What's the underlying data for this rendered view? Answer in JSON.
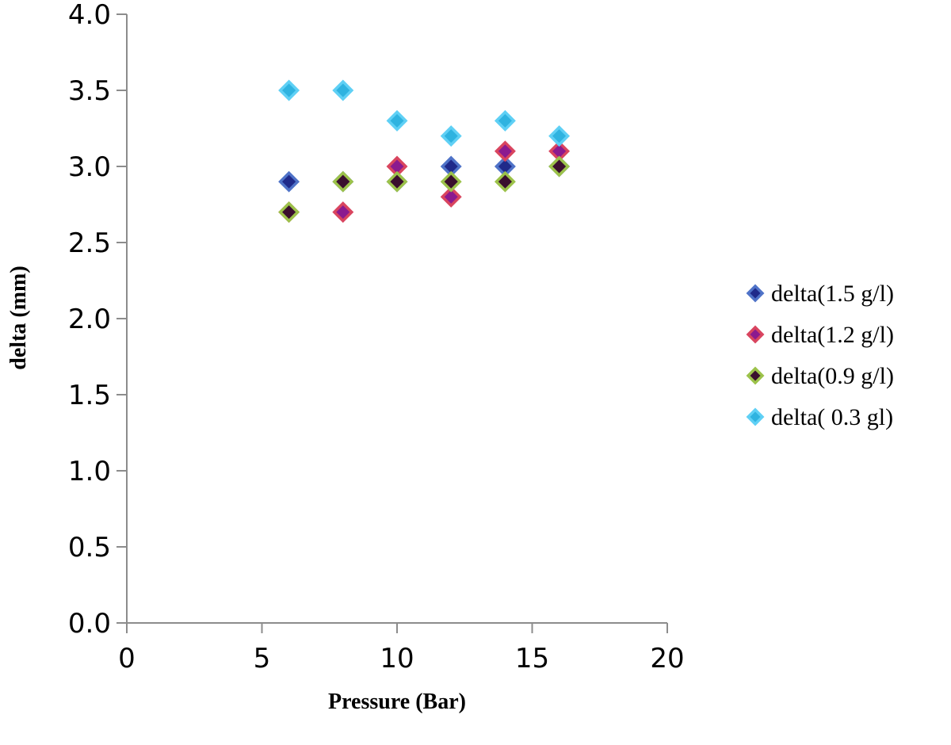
{
  "chart_data": {
    "type": "scatter",
    "title": "",
    "xlabel": "Pressure (Bar)",
    "ylabel": "delta (mm)",
    "xlim": [
      0,
      20
    ],
    "ylim": [
      0,
      4
    ],
    "x_ticks": [
      0,
      5,
      10,
      15,
      20
    ],
    "y_ticks": [
      0,
      0.5,
      1,
      1.5,
      2,
      2.5,
      3,
      3.5,
      4
    ],
    "x_tick_labels": [
      "0",
      "5",
      "10",
      "15",
      "20"
    ],
    "y_tick_labels": [
      "0.0",
      "0.5",
      "1.0",
      "1.5",
      "2.0",
      "2.5",
      "3.0",
      "3.5",
      "4.0"
    ],
    "grid": false,
    "legend_position": "right",
    "marker": "diamond",
    "series": [
      {
        "name": "delta(1.5 g/l)",
        "x": [
          6,
          8,
          10,
          12,
          14,
          16
        ],
        "y": [
          2.9,
          2.9,
          2.9,
          3.0,
          3.0,
          3.0
        ],
        "fill": "#1f2a8a",
        "stroke": "#4f73c8"
      },
      {
        "name": "delta(1.2 g/l)",
        "x": [
          6,
          8,
          10,
          12,
          14,
          16
        ],
        "y": [
          2.7,
          2.7,
          3.0,
          2.8,
          3.1,
          3.1
        ],
        "fill": "#8b1a8f",
        "stroke": "#d9455f"
      },
      {
        "name": "delta(0.9 g/l)",
        "x": [
          6,
          8,
          10,
          12,
          14,
          16
        ],
        "y": [
          2.7,
          2.9,
          2.9,
          2.9,
          2.9,
          3.0
        ],
        "fill": "#3a0f2e",
        "stroke": "#9cc24a"
      },
      {
        "name": "delta( 0.3 gl)",
        "x": [
          6,
          8,
          10,
          12,
          14,
          16
        ],
        "y": [
          3.5,
          3.5,
          3.3,
          3.2,
          3.3,
          3.2
        ],
        "fill": "#2fb3e0",
        "stroke": "#5fd0f5"
      }
    ]
  }
}
